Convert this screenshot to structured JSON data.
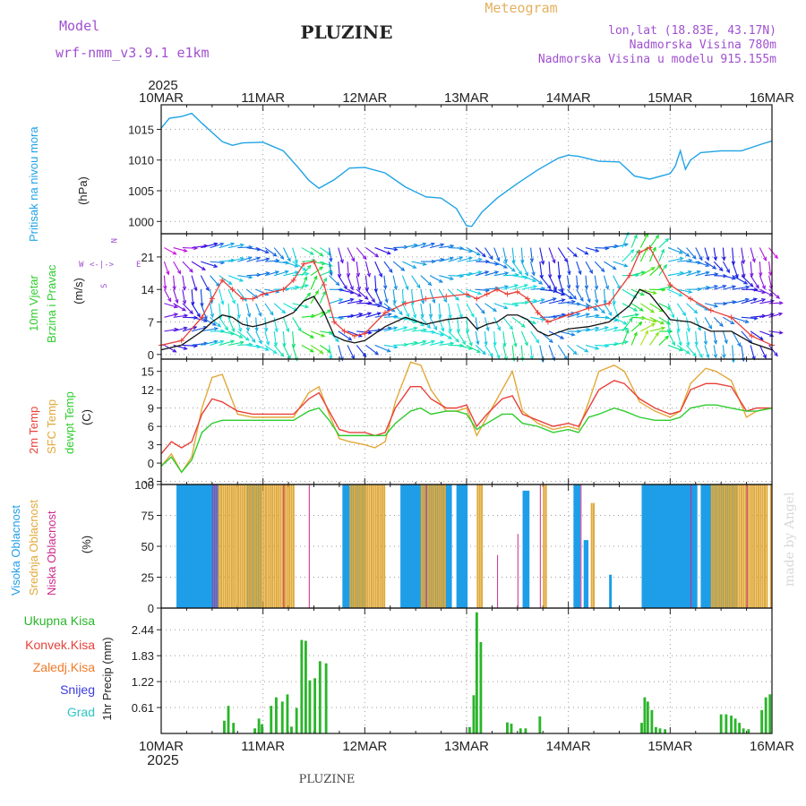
{
  "header": {
    "model_label": "Model",
    "model_name": "wrf-nmm_v3.9.1  e1km",
    "station": "PLUZINE",
    "product": "Meteogram",
    "coords": "lon,lat (18.83E, 43.17N)",
    "elevation": "Nadmorska Visina 780m",
    "model_elevation": "Nadmorska Visina u modelu 915.155m",
    "footer_station": "PLUZINE",
    "watermark": "made by Angel"
  },
  "colors": {
    "pressure": "#1fa3e6",
    "temp2m": "#e8403a",
    "sfc_temp": "#e3a838",
    "dewpt": "#2ecc2e",
    "wind_speed": "#111111",
    "gust": "#e8403a",
    "high_cloud": "#1f9ee8",
    "mid_cloud": "#e0a93a",
    "low_cloud": "#cc2a8a",
    "total_precip": "#2ab52a",
    "conv_precip": "#e8403a",
    "frz_precip": "#ef7a28",
    "snow": "#3a3ae0",
    "hail": "#2ec4c4",
    "label_purple": "#a050d0"
  },
  "time_axis": {
    "year": "2025",
    "ticks": [
      "10MAR",
      "11MAR",
      "12MAR",
      "13MAR",
      "14MAR",
      "15MAR",
      "16MAR"
    ],
    "bottom_year": "2025"
  },
  "chart_data": [
    {
      "type": "line",
      "title": "Pritisak na nivou mora",
      "ylabel": "(hPa)",
      "ylim": [
        998,
        1019
      ],
      "yticks": [
        1000,
        1005,
        1010,
        1015
      ],
      "x_days": [
        0,
        0.08,
        0.2,
        0.3,
        0.4,
        0.5,
        0.6,
        0.7,
        0.8,
        1.0,
        1.2,
        1.35,
        1.45,
        1.55,
        1.7,
        1.85,
        2.0,
        2.2,
        2.4,
        2.6,
        2.75,
        2.9,
        3.0,
        3.05,
        3.15,
        3.3,
        3.5,
        3.7,
        3.9,
        4.0,
        4.1,
        4.3,
        4.5,
        4.65,
        4.8,
        5.0,
        5.05,
        5.1,
        5.15,
        5.2,
        5.3,
        5.5,
        5.7,
        5.9,
        6.0
      ],
      "series": [
        {
          "name": "",
          "values": [
            1015.2,
            1016.8,
            1017.1,
            1017.6,
            1016.0,
            1014.5,
            1013.0,
            1012.4,
            1012.8,
            1012.9,
            1011.5,
            1008.7,
            1006.7,
            1005.4,
            1006.8,
            1008.7,
            1008.8,
            1007.9,
            1005.6,
            1004.0,
            1003.8,
            1002.1,
            999.3,
            999.2,
            1001.5,
            1003.8,
            1006.2,
            1008.4,
            1010.3,
            1010.8,
            1010.6,
            1009.8,
            1009.7,
            1007.4,
            1006.9,
            1007.8,
            1009.0,
            1011.5,
            1008.5,
            1010.0,
            1011.2,
            1011.5,
            1011.5,
            1012.6,
            1013.1
          ]
        }
      ]
    },
    {
      "type": "line",
      "title": "10m Vjetar",
      "subtitle": "Brzina i Pravac",
      "ylabel": "(m/s)",
      "ylim": [
        -1,
        26
      ],
      "yticks": [
        0,
        7,
        14,
        21
      ],
      "compass": {
        "n": "N",
        "w": "W",
        "e": "E",
        "s": "S"
      },
      "x_days": [
        0,
        0.2,
        0.4,
        0.5,
        0.6,
        0.7,
        0.8,
        0.9,
        1.0,
        1.2,
        1.3,
        1.4,
        1.5,
        1.6,
        1.7,
        1.8,
        1.9,
        2.0,
        2.2,
        2.4,
        2.6,
        2.8,
        3.0,
        3.1,
        3.2,
        3.3,
        3.4,
        3.5,
        3.6,
        3.7,
        3.8,
        4.0,
        4.2,
        4.4,
        4.6,
        4.7,
        4.8,
        5.0,
        5.2,
        5.4,
        5.6,
        5.8,
        6.0
      ],
      "series": [
        {
          "name": "",
          "values": [
            1.0,
            2.0,
            5.0,
            7.0,
            8.5,
            8.0,
            6.5,
            6.0,
            6.5,
            8.0,
            9.0,
            11.5,
            12.5,
            9.0,
            4.0,
            3.0,
            2.5,
            3.0,
            6.0,
            8.0,
            6.5,
            7.5,
            8.0,
            5.5,
            6.5,
            7.0,
            8.5,
            8.5,
            7.5,
            5.0,
            4.0,
            5.5,
            6.0,
            7.0,
            10.5,
            14.0,
            13.0,
            7.5,
            7.0,
            5.0,
            5.0,
            2.5,
            1.0
          ]
        },
        {
          "name": "",
          "values": [
            2.0,
            3.0,
            8.0,
            12.0,
            16.0,
            14.0,
            12.0,
            12.0,
            13.0,
            14.0,
            16.0,
            19.5,
            20.0,
            15.0,
            7.0,
            5.0,
            4.0,
            4.5,
            9.0,
            11.0,
            12.0,
            12.5,
            13.0,
            12.0,
            13.0,
            14.0,
            13.0,
            13.5,
            12.0,
            9.0,
            7.0,
            8.5,
            10.0,
            11.0,
            17.0,
            22.0,
            23.0,
            15.0,
            12.0,
            9.5,
            8.0,
            4.0,
            2.0
          ]
        }
      ]
    },
    {
      "type": "line",
      "title": "2m Temp",
      "ylabel": "(C)",
      "ylim": [
        -3.5,
        17
      ],
      "yticks": [
        -3,
        0,
        3,
        6,
        9,
        12,
        15
      ],
      "x_days": [
        0,
        0.1,
        0.2,
        0.3,
        0.4,
        0.5,
        0.6,
        0.75,
        0.9,
        1.0,
        1.2,
        1.3,
        1.45,
        1.55,
        1.65,
        1.75,
        1.85,
        2.0,
        2.1,
        2.2,
        2.3,
        2.45,
        2.55,
        2.65,
        2.8,
        2.9,
        3.0,
        3.1,
        3.2,
        3.35,
        3.45,
        3.55,
        3.7,
        3.85,
        4.0,
        4.1,
        4.2,
        4.3,
        4.45,
        4.55,
        4.7,
        4.85,
        5.0,
        5.1,
        5.2,
        5.35,
        5.45,
        5.6,
        5.75,
        5.85,
        6.0
      ],
      "series": [
        {
          "name": "2m Temp",
          "values": [
            1.5,
            3.5,
            2.5,
            3.5,
            8.0,
            10.5,
            10.0,
            8.5,
            8.0,
            8.0,
            8.0,
            8.0,
            10.5,
            11.5,
            8.5,
            5.5,
            5.0,
            5.0,
            4.5,
            5.0,
            9.0,
            12.5,
            12.5,
            10.5,
            9.0,
            9.0,
            9.5,
            6.0,
            8.0,
            10.5,
            11.0,
            8.0,
            7.0,
            6.0,
            6.5,
            6.0,
            9.0,
            12.0,
            13.5,
            13.0,
            10.5,
            9.0,
            8.0,
            8.5,
            12.0,
            13.0,
            13.0,
            12.5,
            8.5,
            9.0,
            9.0
          ]
        },
        {
          "name": "SFC Temp",
          "values": [
            -0.5,
            1.5,
            -1.5,
            1.0,
            9.0,
            14.0,
            14.5,
            8.0,
            7.5,
            7.5,
            7.5,
            7.5,
            11.5,
            12.5,
            8.0,
            4.0,
            3.5,
            3.0,
            2.5,
            3.5,
            10.0,
            16.5,
            16.0,
            12.0,
            8.5,
            8.5,
            9.0,
            4.5,
            7.5,
            12.0,
            15.0,
            8.5,
            6.5,
            5.5,
            6.0,
            5.5,
            10.0,
            15.0,
            16.0,
            15.0,
            10.0,
            8.5,
            7.5,
            8.5,
            13.0,
            15.5,
            15.0,
            13.5,
            7.5,
            8.5,
            9.0
          ]
        },
        {
          "name": "dewpt Temp",
          "values": [
            -0.5,
            1.0,
            -1.5,
            0.5,
            5.0,
            6.5,
            7.0,
            7.0,
            7.0,
            7.0,
            7.0,
            7.0,
            8.5,
            9.0,
            7.0,
            4.5,
            4.5,
            4.5,
            4.5,
            4.5,
            6.5,
            8.5,
            9.0,
            8.0,
            8.5,
            8.5,
            8.0,
            5.5,
            6.5,
            8.0,
            8.0,
            6.5,
            6.0,
            5.0,
            5.5,
            5.0,
            7.5,
            8.0,
            9.0,
            8.5,
            7.5,
            7.0,
            7.0,
            7.5,
            9.0,
            9.5,
            9.5,
            9.0,
            8.5,
            8.5,
            9.0
          ]
        }
      ]
    },
    {
      "type": "bar",
      "title": "Oblacnost",
      "ylabel": "(%)",
      "ylim": [
        0,
        100
      ],
      "yticks": [
        0,
        25,
        50,
        75,
        100
      ],
      "series_names": [
        "Visoka Oblacnost",
        "Srednja Oblacnost",
        "Niska Oblacnost"
      ],
      "series": [
        {
          "name": "Visoka Oblacnost",
          "blocks": [
            [
              0.15,
              0.55,
              100
            ],
            [
              0.84,
              0.98,
              100
            ],
            [
              1.78,
              2.0,
              100
            ],
            [
              2.35,
              2.85,
              100
            ],
            [
              2.9,
              3.0,
              100
            ],
            [
              3.55,
              3.6,
              95
            ],
            [
              4.05,
              4.1,
              100
            ],
            [
              4.15,
              4.18,
              55
            ],
            [
              4.4,
              4.42,
              27
            ],
            [
              4.72,
              5.25,
              100
            ],
            [
              5.3,
              5.65,
              100
            ]
          ]
        },
        {
          "name": "Srednja Oblacnost",
          "blocks": [
            [
              0.56,
              1.0,
              100
            ],
            [
              1.0,
              1.3,
              100
            ],
            [
              1.85,
              2.2,
              100
            ],
            [
              2.55,
              2.8,
              100
            ],
            [
              3.1,
              3.15,
              100
            ],
            [
              3.75,
              3.78,
              100
            ],
            [
              4.22,
              4.25,
              85
            ],
            [
              5.4,
              5.95,
              100
            ],
            [
              5.98,
              6.0,
              100
            ]
          ]
        },
        {
          "name": "Niska Oblacnost",
          "blocks": [
            [
              0.5,
              0.55,
              100
            ],
            [
              1.2,
              1.22,
              100
            ],
            [
              1.45,
              1.47,
              100
            ],
            [
              2.6,
              2.62,
              100
            ],
            [
              3.3,
              3.31,
              43
            ],
            [
              3.5,
              3.52,
              60
            ],
            [
              3.72,
              3.74,
              100
            ],
            [
              4.12,
              4.14,
              100
            ],
            [
              5.2,
              5.22,
              100
            ],
            [
              5.75,
              5.77,
              100
            ]
          ]
        }
      ]
    },
    {
      "type": "bar",
      "title": "1hr Precip",
      "ylabel": "1hr Precip (mm)",
      "ylim": [
        0,
        2.95
      ],
      "yticks": [
        0.61,
        1.22,
        1.83,
        2.44
      ],
      "ytick_labels": [
        "0.61",
        "1.22",
        "1.83",
        "2.44"
      ],
      "series_names": [
        "Ukupna Kisa",
        "Konvek.Kisa",
        "Zaledj.Kisa",
        "Snijeg",
        "Grad"
      ],
      "bar_width_days": 0.025,
      "series": [
        {
          "name": "Ukupna Kisa",
          "x_days": [
            0.62,
            0.66,
            0.71,
            0.92,
            0.96,
            0.99,
            1.08,
            1.13,
            1.19,
            1.24,
            1.28,
            1.33,
            1.38,
            1.42,
            1.46,
            1.51,
            1.56,
            1.62,
            3.03,
            3.07,
            3.1,
            3.14,
            3.4,
            3.44,
            3.53,
            3.58,
            3.72,
            4.72,
            4.75,
            4.78,
            4.82,
            4.86,
            4.9,
            4.95,
            5.5,
            5.55,
            5.6,
            5.64,
            5.68,
            5.72,
            5.77,
            5.9,
            5.94,
            5.98
          ],
          "values": [
            0.3,
            0.65,
            0.25,
            0.12,
            0.35,
            0.22,
            0.65,
            0.85,
            0.75,
            0.92,
            0.16,
            0.6,
            2.2,
            2.18,
            1.25,
            1.3,
            1.7,
            1.65,
            0.15,
            0.9,
            2.85,
            2.15,
            0.26,
            0.23,
            0.12,
            0.12,
            0.4,
            0.25,
            0.85,
            0.75,
            0.55,
            0.15,
            0.12,
            0.1,
            0.45,
            0.45,
            0.42,
            0.35,
            0.25,
            0.12,
            0.1,
            0.55,
            0.85,
            0.92
          ]
        }
      ]
    }
  ]
}
